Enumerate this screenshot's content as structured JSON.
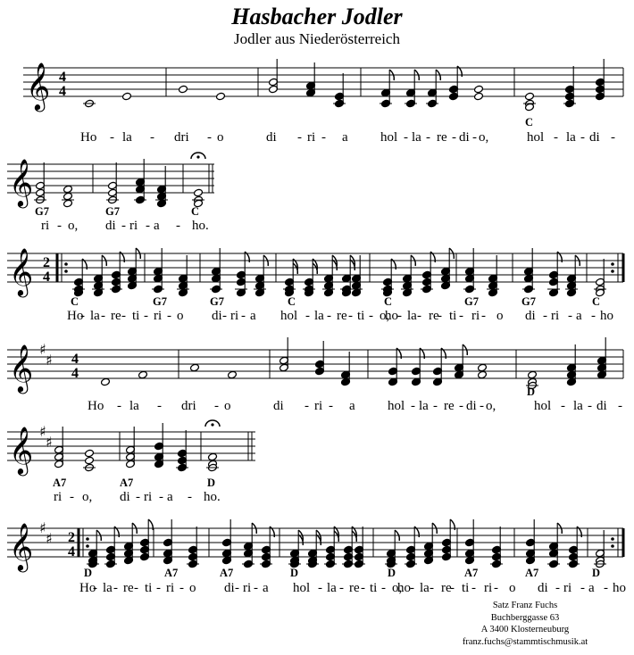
{
  "title": "Hasbacher Jodler",
  "subtitle": "Jodler aus Niederösterreich",
  "time_signatures": {
    "common": "4",
    "alla": "2"
  },
  "lyrics": {
    "line1": [
      "Ho",
      "-",
      "la",
      "-",
      "dri",
      "-",
      "o",
      "di",
      "-",
      "ri",
      "-",
      "a",
      "hol",
      "-",
      "la",
      "-",
      "re",
      "-",
      "di",
      "-",
      "o,",
      "hol",
      "-",
      "la",
      "-",
      "di",
      "-"
    ],
    "line2": [
      "ri",
      "-",
      "o,",
      "di",
      "-",
      "ri",
      "-",
      "a",
      "-",
      "ho."
    ],
    "line3": [
      "Ho",
      "-",
      "la",
      "-",
      "re",
      "-",
      "ti",
      "-",
      "ri",
      "-",
      "o",
      "di",
      "-",
      "ri",
      "-",
      "a",
      "hol",
      "-",
      "la",
      "-",
      "re",
      "-",
      "ti",
      "-",
      "o,",
      "ho",
      "-",
      "la",
      "-",
      "re",
      "-",
      "ti",
      "-",
      "ri",
      "-",
      "o",
      "di",
      "-",
      "ri",
      "-",
      "a",
      "-",
      "ho"
    ]
  },
  "chords": {
    "row1": [
      "C"
    ],
    "row2": [
      "G7",
      "G7",
      "C"
    ],
    "row3": [
      "C",
      "G7",
      "G7",
      "C",
      "C",
      "G7",
      "G7",
      "C"
    ],
    "row4": [
      "D"
    ],
    "row5": [
      "A7",
      "A7",
      "D"
    ],
    "row6": [
      "D",
      "A7",
      "A7",
      "D",
      "D",
      "A7",
      "A7",
      "D"
    ]
  },
  "footer": {
    "line1": "Satz Franz Fuchs",
    "line2": "Buchberggasse 63",
    "line3": "A 3400 Klosterneuburg",
    "line4": "franz.fuchs@stammtischmusik.at"
  }
}
